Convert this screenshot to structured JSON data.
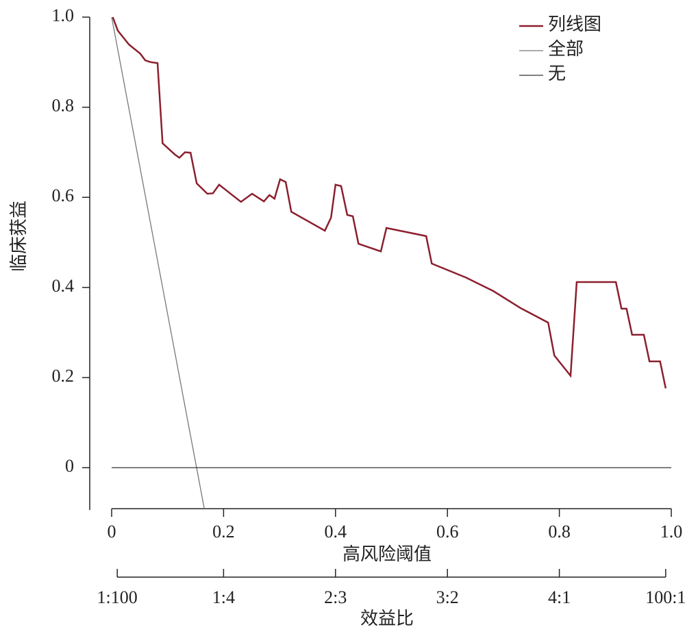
{
  "chart_data": {
    "type": "line",
    "ylabel": "临床获益",
    "xlabel": "高风险阈值",
    "x2label": "效益比",
    "xlim": [
      0,
      1
    ],
    "ylim": [
      -0.094,
      1
    ],
    "xticks": [
      0,
      0.2,
      0.4,
      0.6,
      0.8,
      {
        "value": 1,
        "label": "1.0"
      }
    ],
    "yticks": [
      0,
      0.2,
      0.4,
      0.6,
      0.8,
      {
        "value": 1,
        "label": "1.0"
      }
    ],
    "x2ticks": [
      {
        "value": 0.01,
        "label": "1:100"
      },
      {
        "value": 0.2,
        "label": "1:4"
      },
      {
        "value": 0.4,
        "label": "2:3"
      },
      {
        "value": 0.6,
        "label": "3:2"
      },
      {
        "value": 0.8,
        "label": "4:1"
      },
      {
        "value": 0.99,
        "label": "100:1"
      }
    ],
    "legend": "upper right",
    "series": [
      {
        "name": "列线图",
        "color": "#8b1f2e",
        "x": [
          0.002,
          0.011,
          0.031,
          0.051,
          0.06,
          0.07,
          0.082,
          0.091,
          0.113,
          0.121,
          0.131,
          0.141,
          0.152,
          0.171,
          0.181,
          0.192,
          0.231,
          0.251,
          0.272,
          0.282,
          0.291,
          0.301,
          0.311,
          0.321,
          0.381,
          0.392,
          0.4,
          0.41,
          0.421,
          0.431,
          0.441,
          0.481,
          0.491,
          0.562,
          0.572,
          0.633,
          0.682,
          0.731,
          0.78,
          0.791,
          0.82,
          0.831,
          0.901,
          0.911,
          0.92,
          0.93,
          0.951,
          0.961,
          0.98,
          0.99
        ],
        "values": [
          1.0,
          0.97,
          0.939,
          0.919,
          0.904,
          0.9,
          0.898,
          0.72,
          0.695,
          0.688,
          0.7,
          0.699,
          0.631,
          0.608,
          0.609,
          0.628,
          0.59,
          0.608,
          0.591,
          0.605,
          0.597,
          0.64,
          0.634,
          0.568,
          0.526,
          0.555,
          0.628,
          0.625,
          0.561,
          0.558,
          0.497,
          0.48,
          0.532,
          0.514,
          0.453,
          0.422,
          0.392,
          0.354,
          0.322,
          0.249,
          0.204,
          0.412,
          0.412,
          0.353,
          0.353,
          0.295,
          0.295,
          0.236,
          0.236,
          0.176
        ]
      },
      {
        "name": "全部",
        "color": "#777777",
        "x": [
          0,
          0.166
        ],
        "values": [
          1.0,
          -0.094
        ]
      },
      {
        "name": "无",
        "color": "#333333",
        "x": [
          0,
          1
        ],
        "values": [
          0,
          0
        ]
      }
    ]
  }
}
